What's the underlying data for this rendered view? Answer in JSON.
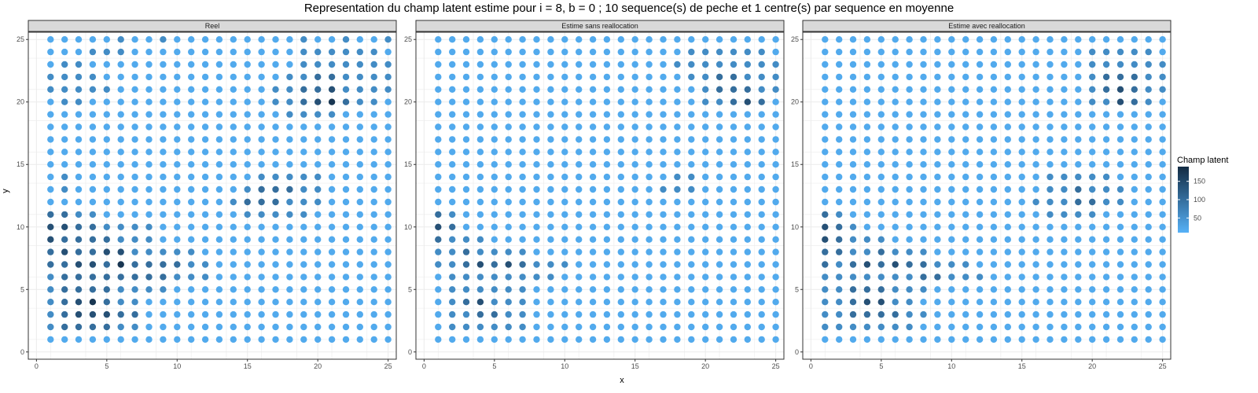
{
  "title": "Representation du champ latent estime pour i = 8, b = 0 ; 10 sequence(s) de peche et 1 centre(s) par sequence en moyenne",
  "colors": {
    "low": "#56B1F7",
    "high": "#132B43",
    "strip_bg": "#d9d9d9",
    "grid": "#ebebeb",
    "panel_border": "#333333"
  },
  "chart_data": {
    "type": "scatter",
    "xlabel": "x",
    "ylabel": "y",
    "xlim": [
      0,
      26
    ],
    "ylim": [
      0,
      26
    ],
    "x_ticks": [
      0,
      5,
      10,
      15,
      20,
      25
    ],
    "y_ticks": [
      0,
      5,
      10,
      15,
      20,
      25
    ],
    "x_tick_labels": [
      "0",
      "5",
      "10",
      "15",
      "20",
      "25"
    ],
    "y_tick_labels": [
      "0",
      "5",
      "10",
      "15",
      "20",
      "25"
    ],
    "grid": true,
    "grid_x": [
      1,
      25
    ],
    "grid_y": [
      1,
      25
    ],
    "legend": {
      "title": "Champ latent",
      "ticks": [
        50,
        100,
        150
      ],
      "tick_labels": [
        "50",
        "100",
        "150"
      ],
      "range": [
        10,
        190
      ],
      "placement": "right"
    },
    "panels": [
      {
        "name": "Reel",
        "values": [
          "1111121121111111112112112",
          "1112221111111111112222221",
          "1221111111111111112222222",
          "2222111111111111122332222",
          "2222211111111111223342222",
          "1221111111111111223453221",
          "1111111111111111122221111",
          "1111111111111111111111111",
          "1111111111111111111111111",
          "1111111111111111111111111",
          "1111111111111111111111111",
          "1211111111111112222211111",
          "1211111111111123332211111",
          "1111111111111233322211111",
          "3322111111111122222111111",
          "4433222211111111111111111",
          "4333322211111111111111111",
          "3433442222211111111111111",
          "3344353333221111111111111",
          "2333333332221111111111111",
          "2333322221111111111111111",
          "2345322111111111111111111",
          "2344433111111111111111111",
          "2333322111111111111111111",
          "1111111111111111111111111"
        ]
      },
      {
        "name": "Estime sans reallocation",
        "values": [
          "1111111111111111111111111",
          "1111111111111111112222221",
          "1111111111111111122222222",
          "1111111111111111112233222",
          "1111111111111111111233322",
          "1111111111111111111223431",
          "1111111111111111111111111",
          "1111111111111111111111111",
          "1111111111111111111111111",
          "1111111111111111111111111",
          "1111111111111111111111111",
          "1111111111111111122111111",
          "1111111111111111222111111",
          "1111111111111111111111111",
          "3211111111111111111111111",
          "4311111111111111111111111",
          "3222111111111111111111111",
          "2232222111111111111111111",
          "2234343222111111111111111",
          "1222222221111111111111111",
          "1222222111111111111111111",
          "1234222111111111111111111",
          "1223322111111111111111111",
          "1222222111111111111111111",
          "1111111111111111111111111"
        ]
      },
      {
        "name": "Estime avec reallocation",
        "values": [
          "1111111111111111111111111",
          "1111111111111111111222221",
          "1111111111111111111222222",
          "1111111111111111111233322",
          "1111111111111111111234322",
          "1111111111111111111224321",
          "1111111111111111111111111",
          "1111111111111111111111111",
          "1111111111111111111111111",
          "1111111111111111111111111",
          "1111111111111111111111111",
          "1111111111111111222221111",
          "1111111111111111223222111",
          "1111111111111112223322111",
          "3211111111111111222211111",
          "4321111111111111111111111",
          "4322211111111111111111111",
          "3322322211111111111111111",
          "3234343322211111111111111",
          "2222222332221111111111111",
          "2233322211111111111111111",
          "2234422111111111111111111",
          "2233332211111111111111111",
          "2222222111111111111111111",
          "1111111111111111111111111"
        ]
      }
    ],
    "value_encoding": {
      "1": 20,
      "2": 60,
      "3": 100,
      "4": 140,
      "5": 175
    }
  }
}
